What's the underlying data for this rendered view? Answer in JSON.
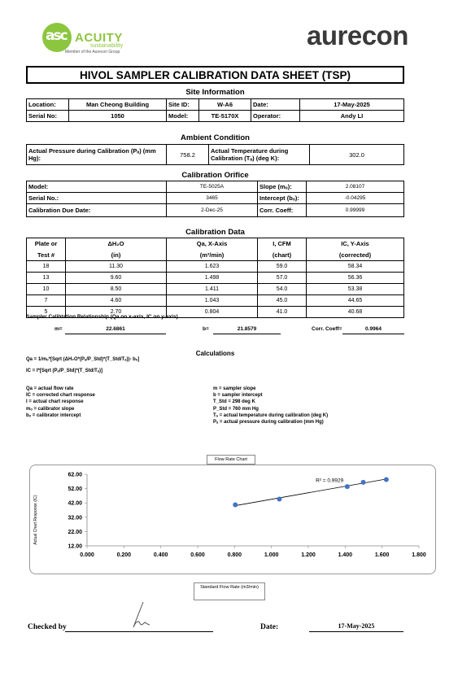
{
  "header": {
    "acuity_logo_letters": "asc",
    "acuity_name": "ACUITY",
    "acuity_sub": "sustainability",
    "acuity_member": "Member of the Aurecon Group",
    "aurecon_name": "aurecon"
  },
  "title": "HIVOL SAMPLER CALIBRATION  DATA SHEET (TSP)",
  "site": {
    "heading": "Site Information",
    "location_label": "Location:",
    "location": "Man Cheong Building",
    "site_id_label": "Site ID:",
    "site_id": "W-A6",
    "date_label": "Date:",
    "date": "17-May-2025",
    "serial_label": "Serial No:",
    "serial": "1050",
    "model_label": "Model:",
    "model": "TE-5170X",
    "operator_label": "Operator:",
    "operator": "Andy LI"
  },
  "ambient": {
    "heading": "Ambient Condition",
    "pressure_label": "Actual Pressure during Calibration (Pₐ) (mm Hg):",
    "pressure": "758.2",
    "temp_label": "Actual Temperature during Calibration (Tₐ) (deg K):",
    "temp": "302.0"
  },
  "orifice": {
    "heading": "Calibration Orifice",
    "model_label": "Model:",
    "model": "TE-5025A",
    "slope_label": "Slope (mₒ):",
    "slope": "2.08107",
    "serial_label": "Serial No.:",
    "serial": "3465",
    "intercept_label": "Intercept (bₒ):",
    "intercept": "-0.04295",
    "due_label": "Calibration Due Date:",
    "due": "2-Dec-25",
    "corr_label": "Corr. Coeff:",
    "corr": "0.99999"
  },
  "calib_data": {
    "heading": "Calibration Data",
    "headers_top": [
      "Plate or",
      "ΔH₂O",
      "Qa, X-Axis",
      "I, CFM",
      "IC, Y-Axis"
    ],
    "headers_bottom": [
      "Test #",
      "(in)",
      "(m³/min)",
      "(chart)",
      "(corrected)"
    ],
    "rows": [
      [
        "18",
        "11.30",
        "1.623",
        "59.0",
        "58.34"
      ],
      [
        "13",
        "9.60",
        "1.498",
        "57.0",
        "56.36"
      ],
      [
        "10",
        "8.50",
        "1.411",
        "54.0",
        "53.38"
      ],
      [
        "7",
        "4.60",
        "1.043",
        "45.0",
        "44.65"
      ],
      [
        "5",
        "2.70",
        "0.804",
        "41.0",
        "40.68"
      ]
    ]
  },
  "relationship": {
    "title": "Sampler Calibtation Relationship (Qa on x-axis, IC on y-axis)",
    "m_label": "m=",
    "m": "22.6861",
    "b_label": "b=",
    "b": "21.8579",
    "corr_label": "Corr. Coeff=",
    "corr": "0.9964"
  },
  "calculations": {
    "heading": "Calculations",
    "formula1": "Qa = 1/mₒ*[Sqrt (ΔH₂O*(Pₐ/P_Std)*(T_Std/Tₐ))- bₒ]",
    "formula2": "IC = I*[Sqrt (Pₐ/P_Std)*(T_Std/Tₐ)]",
    "defs_left": [
      "Qa = actual flow rate",
      "IC = corrected chart response",
      "I = actual chart response",
      "mₒ = calibrator slope",
      "bₒ = calibrator intercept"
    ],
    "defs_right": [
      "m = sampler slope",
      "b  = sampler intercept",
      "T_Std = 298 deg K",
      "P_Std = 760 mm Hg",
      "Tₐ = actual temperature during calibration (deg K)",
      "Pₐ = actual pressure during calibration (mm Hg)"
    ]
  },
  "chart_data": {
    "type": "scatter",
    "title": "Flow Rate Chart",
    "xlabel": "Standard Flow Rate (m3/min)",
    "ylabel": "Actual Chart Response (IC)",
    "xlim": [
      0.0,
      1.8
    ],
    "ylim": [
      12.0,
      62.0
    ],
    "x_ticks": [
      "0.000",
      "0.200",
      "0.400",
      "0.600",
      "0.800",
      "1.000",
      "1.200",
      "1.400",
      "1.600",
      "1.800"
    ],
    "y_ticks": [
      "12.00",
      "22.00",
      "32.00",
      "42.00",
      "52.00",
      "62.00"
    ],
    "points": [
      {
        "x": 0.804,
        "y": 40.68
      },
      {
        "x": 1.043,
        "y": 44.65
      },
      {
        "x": 1.411,
        "y": 53.38
      },
      {
        "x": 1.498,
        "y": 56.36
      },
      {
        "x": 1.623,
        "y": 58.34
      }
    ],
    "trendline": {
      "slope": 22.6861,
      "intercept": 21.8579
    },
    "r2_label": "R² = 0.9929",
    "point_color": "#4472c4",
    "grid": false
  },
  "signoff": {
    "checked_label": "Checked by",
    "date_label": "Date:",
    "date": "17-May-2025"
  }
}
